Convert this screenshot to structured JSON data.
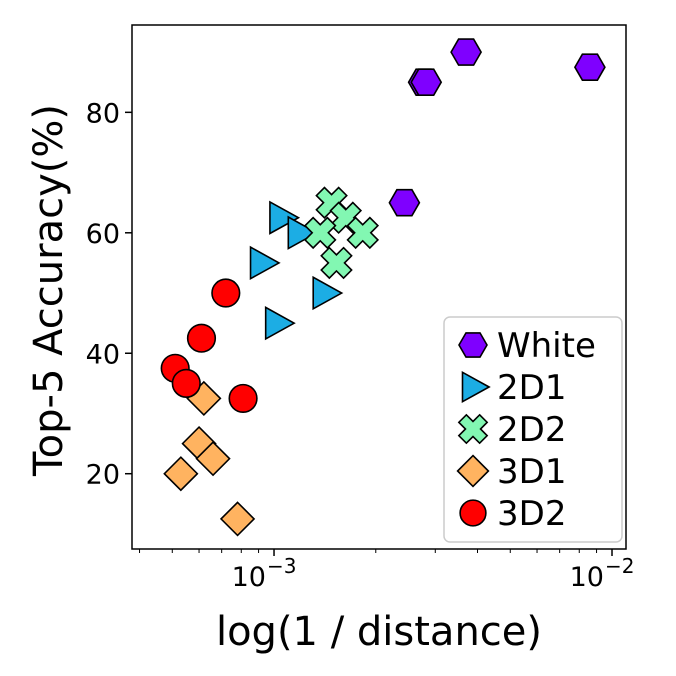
{
  "chart_data": {
    "type": "scatter",
    "xlabel": "log(1 / distance)",
    "ylabel": "Top-5 Accuracy(%)",
    "xscale": "log",
    "xlim": [
      0.00038,
      0.011
    ],
    "ylim": [
      7.5,
      94.5
    ],
    "xticks": [
      {
        "value": 0.001,
        "base": "10",
        "exp": "−3"
      },
      {
        "value": 0.01,
        "base": "10",
        "exp": "−2"
      }
    ],
    "yticks": [
      20,
      40,
      60,
      80
    ],
    "grid": false,
    "legend_position": "lower-right",
    "series": [
      {
        "name": "White",
        "marker": "hexagon",
        "color": "#7f00ff",
        "points": [
          {
            "x": 0.00277,
            "y": 85.0
          },
          {
            "x": 0.00282,
            "y": 85.0
          },
          {
            "x": 0.0037,
            "y": 90.0
          },
          {
            "x": 0.0086,
            "y": 87.5
          },
          {
            "x": 0.00243,
            "y": 65.0
          }
        ]
      },
      {
        "name": "2D1",
        "marker": "triangle-right",
        "color": "#1cade4",
        "points": [
          {
            "x": 0.00105,
            "y": 62.5
          },
          {
            "x": 0.00119,
            "y": 60.0
          },
          {
            "x": 0.00092,
            "y": 55.0
          },
          {
            "x": 0.00141,
            "y": 50.0
          },
          {
            "x": 0.00102,
            "y": 45.0
          }
        ]
      },
      {
        "name": "2D2",
        "marker": "x-cross",
        "color": "#82f7b2",
        "points": [
          {
            "x": 0.00148,
            "y": 65.0
          },
          {
            "x": 0.00163,
            "y": 62.5
          },
          {
            "x": 0.00137,
            "y": 60.0
          },
          {
            "x": 0.00183,
            "y": 60.0
          },
          {
            "x": 0.00153,
            "y": 55.0
          }
        ]
      },
      {
        "name": "3D1",
        "marker": "diamond",
        "color": "#ffb360",
        "points": [
          {
            "x": 0.00062,
            "y": 32.5
          },
          {
            "x": 0.0006,
            "y": 25.0
          },
          {
            "x": 0.00066,
            "y": 22.5
          },
          {
            "x": 0.00053,
            "y": 20.0
          },
          {
            "x": 0.00078,
            "y": 12.5
          }
        ]
      },
      {
        "name": "3D2",
        "marker": "circle",
        "color": "#ff0000",
        "points": [
          {
            "x": 0.00072,
            "y": 50.0
          },
          {
            "x": 0.00061,
            "y": 42.5
          },
          {
            "x": 0.00051,
            "y": 37.5
          },
          {
            "x": 0.00055,
            "y": 35.0
          },
          {
            "x": 0.00081,
            "y": 32.5
          }
        ]
      }
    ]
  }
}
